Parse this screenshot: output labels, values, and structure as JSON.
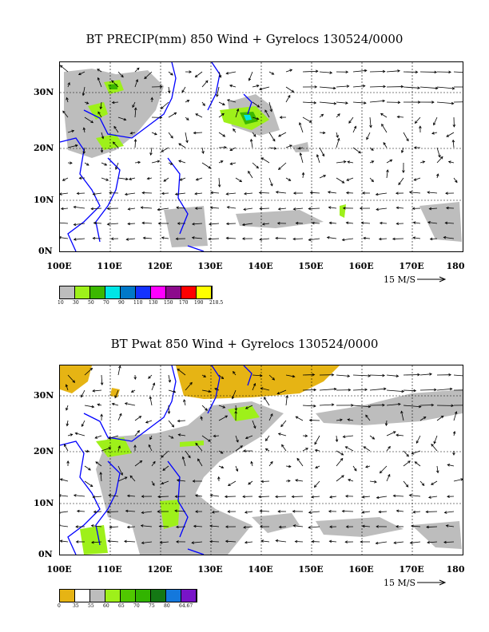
{
  "panel1": {
    "title": "BT PRECIP(mm) 850 Wind + Gyrelocs 130524/0000",
    "y_ticks": [
      "30N",
      "20N",
      "10N",
      "0N"
    ],
    "x_ticks": [
      "100E",
      "110E",
      "120E",
      "130E",
      "140E",
      "150E",
      "160E",
      "170E",
      "180"
    ],
    "scale_label": "15 M/S",
    "legend_colors": [
      "#bdbdbd",
      "#9ef01a",
      "#3cb800",
      "#00e6e6",
      "#0078c8",
      "#1432ff",
      "#ff00ff",
      "#8c0a8c",
      "#ff0000",
      "#ffff00"
    ],
    "legend_labels": [
      "10",
      "30",
      "50",
      "70",
      "90",
      "110",
      "130",
      "150",
      "170",
      "190",
      "218.5"
    ]
  },
  "panel2": {
    "title": "BT Pwat 850 Wind + Gyrelocs 130524/0000",
    "y_ticks": [
      "30N",
      "20N",
      "10N",
      "0N"
    ],
    "x_ticks": [
      "100E",
      "110E",
      "120E",
      "130E",
      "140E",
      "150E",
      "160E",
      "170E",
      "180"
    ],
    "scale_label": "15 M/S",
    "legend_colors": [
      "#e6b414",
      "#ffffff",
      "#bdbdbd",
      "#9ef01a",
      "#50c800",
      "#32b400",
      "#147814",
      "#1478dc",
      "#7814c8"
    ],
    "legend_labels": [
      "0",
      "35",
      "55",
      "60",
      "65",
      "70",
      "75",
      "80",
      "64.67"
    ]
  }
}
